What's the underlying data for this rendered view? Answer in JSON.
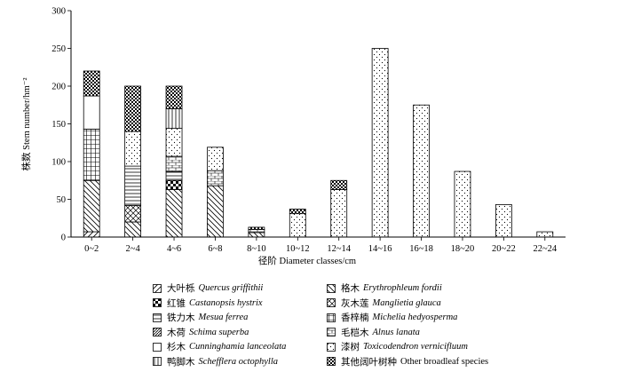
{
  "chart_data": {
    "type": "bar",
    "stacked": true,
    "xlabel": "径阶 Diameter classes/cm",
    "ylabel": "株数 Stem number/hm⁻²",
    "ylim": [
      0,
      300
    ],
    "yticks": [
      0,
      50,
      100,
      150,
      200,
      250,
      300
    ],
    "categories": [
      "0~2",
      "2~4",
      "4~6",
      "6~8",
      "8~10",
      "10~12",
      "12~14",
      "14~16",
      "16~18",
      "18~20",
      "20~22",
      "22~24"
    ],
    "series": [
      {
        "cn": "大叶栎",
        "en": "Quercus griffithii",
        "pattern": "diag-fwd",
        "values": [
          7,
          0,
          0,
          0,
          0,
          0,
          0,
          0,
          0,
          0,
          0,
          0
        ]
      },
      {
        "cn": "格木",
        "en": "Erythrophleum fordii",
        "pattern": "diag-back",
        "values": [
          68,
          20,
          63,
          68,
          6,
          0,
          0,
          0,
          0,
          0,
          0,
          0
        ]
      },
      {
        "cn": "红锥",
        "en": "Castanopsis hystrix",
        "pattern": "checker",
        "values": [
          0,
          0,
          12,
          0,
          0,
          0,
          0,
          0,
          0,
          0,
          0,
          0
        ]
      },
      {
        "cn": "灰木莲",
        "en": "Manglietia glauca",
        "pattern": "xhatch",
        "values": [
          0,
          22,
          0,
          0,
          0,
          0,
          0,
          0,
          0,
          0,
          0,
          0
        ]
      },
      {
        "cn": "铁力木",
        "en": "Mesua ferrea",
        "pattern": "hlines",
        "values": [
          0,
          52,
          12,
          0,
          0,
          0,
          0,
          0,
          0,
          0,
          0,
          0
        ]
      },
      {
        "cn": "香梓楠",
        "en": "Michelia hedyosperma",
        "pattern": "grid",
        "values": [
          68,
          0,
          0,
          0,
          0,
          0,
          0,
          0,
          0,
          0,
          0,
          0
        ]
      },
      {
        "cn": "木荷",
        "en": "Schima superba",
        "pattern": "dense-diag",
        "values": [
          0,
          0,
          0,
          0,
          0,
          0,
          0,
          0,
          0,
          0,
          0,
          0
        ]
      },
      {
        "cn": "毛桤木",
        "en": "Alnus lanata",
        "pattern": "brick",
        "values": [
          0,
          0,
          20,
          20,
          4,
          0,
          0,
          0,
          0,
          0,
          0,
          0
        ]
      },
      {
        "cn": "杉木",
        "en": "Cunninghamia lanceolata",
        "pattern": "empty",
        "values": [
          44,
          0,
          0,
          0,
          0,
          0,
          0,
          0,
          0,
          0,
          0,
          0
        ]
      },
      {
        "cn": "漆树",
        "en": "Toxicodendron vernicifluum",
        "pattern": "dots",
        "values": [
          0,
          46,
          37,
          31,
          0,
          31,
          63,
          250,
          175,
          87,
          43,
          7
        ]
      },
      {
        "cn": "鸭脚木",
        "en": "Schefflera octophylla",
        "pattern": "vlines",
        "values": [
          0,
          0,
          26,
          0,
          0,
          0,
          0,
          0,
          0,
          0,
          0,
          0
        ]
      },
      {
        "cn": "其他阔叶树种",
        "en": "Other broadleaf species",
        "pattern": "dark-check",
        "values": [
          33,
          60,
          30,
          0,
          3,
          6,
          12,
          0,
          0,
          0,
          0,
          0
        ]
      }
    ]
  }
}
